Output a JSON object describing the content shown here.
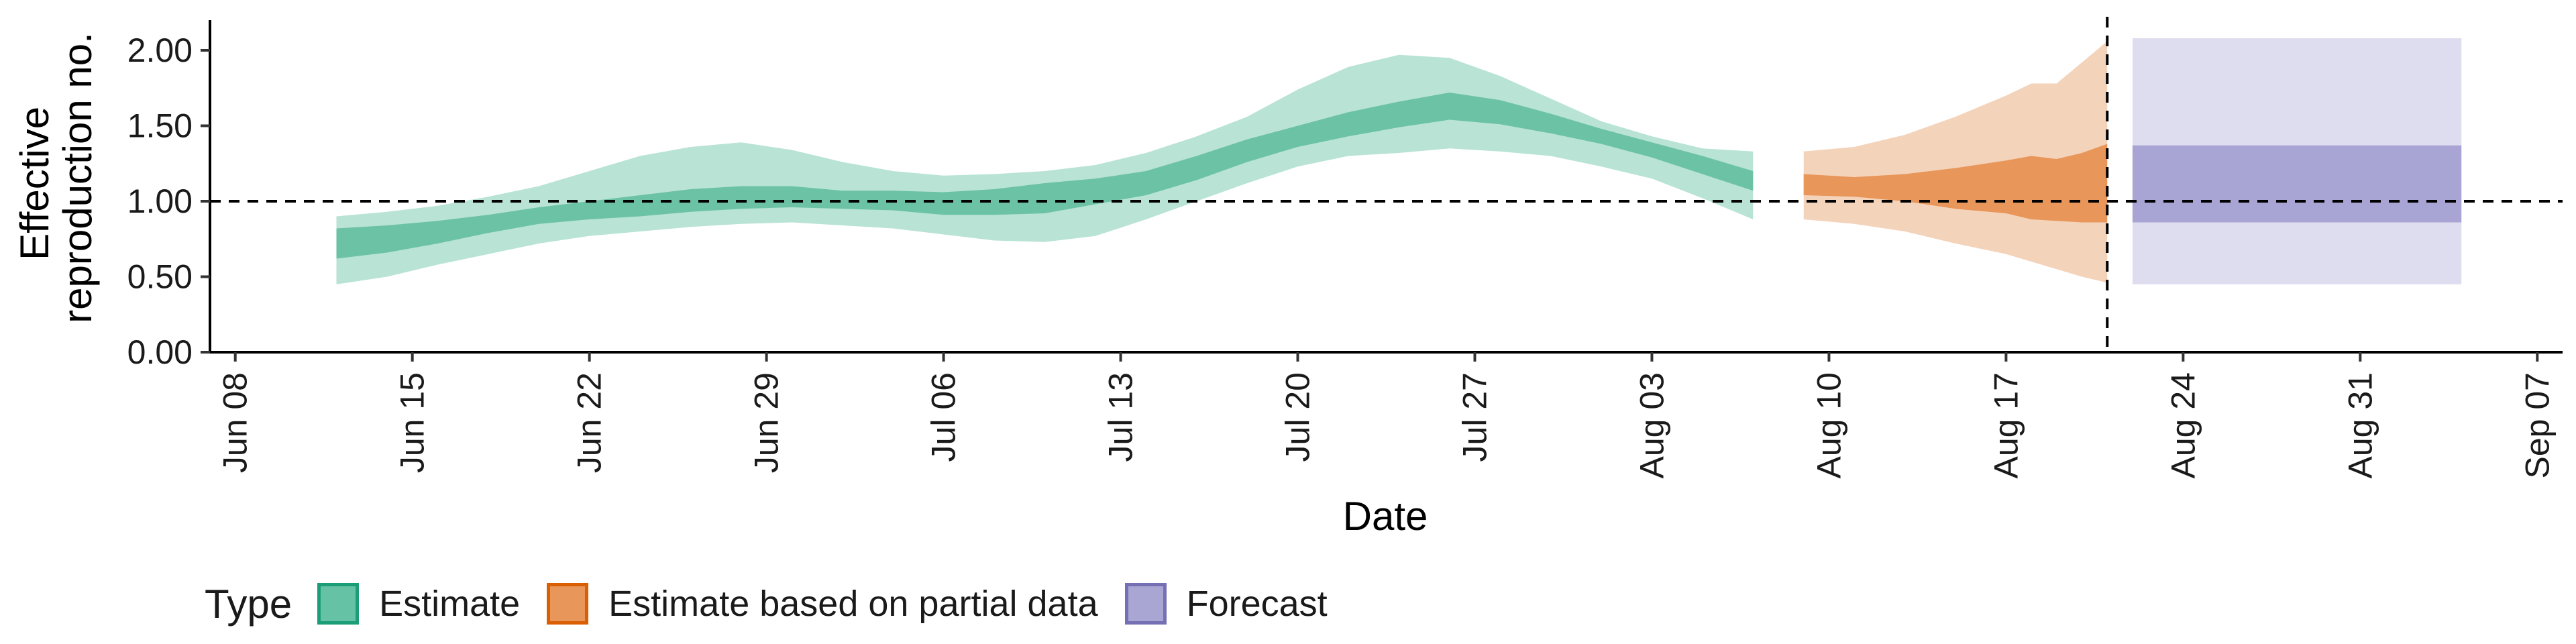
{
  "chart_data": {
    "type": "area",
    "xlabel": "Date",
    "ylabel_lines": [
      "Effective",
      "reproduction no."
    ],
    "ylim": [
      0,
      2.2
    ],
    "xlim": [
      "2020-06-07",
      "2020-09-08"
    ],
    "x_ticks": [
      "2020-06-08",
      "2020-06-15",
      "2020-06-22",
      "2020-06-29",
      "2020-07-06",
      "2020-07-13",
      "2020-07-20",
      "2020-07-27",
      "2020-08-03",
      "2020-08-10",
      "2020-08-17",
      "2020-08-24",
      "2020-08-31",
      "2020-09-07"
    ],
    "x_tick_labels": [
      "Jun 08",
      "Jun 15",
      "Jun 22",
      "Jun 29",
      "Jul 06",
      "Jul 13",
      "Jul 20",
      "Jul 27",
      "Aug 03",
      "Aug 10",
      "Aug 17",
      "Aug 24",
      "Aug 31",
      "Sep 07"
    ],
    "y_ticks": [
      0,
      0.5,
      1.0,
      1.5,
      2.0
    ],
    "y_tick_labels": [
      "0.00",
      "0.50",
      "1.00",
      "1.50",
      "2.00"
    ],
    "hline": 1.0,
    "vline": "2020-08-21",
    "legend": {
      "title": "Type",
      "position": "bottom",
      "items": [
        {
          "label": "Estimate",
          "fill": "#66c2a5",
          "border": "#1b9e77"
        },
        {
          "label": "Estimate based on partial data",
          "fill": "#e8965a",
          "border": "#d95f02"
        },
        {
          "label": "Forecast",
          "fill": "#a9a6d3",
          "border": "#7570b3"
        }
      ]
    },
    "series": [
      {
        "name": "Estimate",
        "color_outer": "#b8e3d5",
        "color_inner": "#6cc2a5",
        "x": [
          "2020-06-12",
          "2020-06-14",
          "2020-06-16",
          "2020-06-18",
          "2020-06-20",
          "2020-06-22",
          "2020-06-24",
          "2020-06-26",
          "2020-06-28",
          "2020-06-30",
          "2020-07-02",
          "2020-07-04",
          "2020-07-06",
          "2020-07-08",
          "2020-07-10",
          "2020-07-12",
          "2020-07-14",
          "2020-07-16",
          "2020-07-18",
          "2020-07-20",
          "2020-07-22",
          "2020-07-24",
          "2020-07-26",
          "2020-07-28",
          "2020-07-30",
          "2020-08-01",
          "2020-08-03",
          "2020-08-05",
          "2020-08-07"
        ],
        "lo90": [
          0.45,
          0.5,
          0.58,
          0.65,
          0.72,
          0.77,
          0.8,
          0.83,
          0.85,
          0.86,
          0.84,
          0.82,
          0.78,
          0.74,
          0.73,
          0.77,
          0.88,
          1.0,
          1.12,
          1.23,
          1.3,
          1.32,
          1.35,
          1.33,
          1.3,
          1.23,
          1.15,
          1.02,
          0.88
        ],
        "lo50": [
          0.62,
          0.66,
          0.72,
          0.79,
          0.85,
          0.88,
          0.9,
          0.93,
          0.95,
          0.96,
          0.95,
          0.94,
          0.91,
          0.91,
          0.92,
          0.98,
          1.04,
          1.14,
          1.26,
          1.36,
          1.43,
          1.49,
          1.54,
          1.51,
          1.45,
          1.38,
          1.29,
          1.18,
          1.07
        ],
        "hi50": [
          0.82,
          0.84,
          0.87,
          0.91,
          0.96,
          1.0,
          1.04,
          1.08,
          1.1,
          1.1,
          1.07,
          1.07,
          1.06,
          1.08,
          1.12,
          1.15,
          1.2,
          1.3,
          1.41,
          1.5,
          1.59,
          1.66,
          1.72,
          1.67,
          1.58,
          1.48,
          1.39,
          1.3,
          1.2
        ],
        "hi90": [
          0.9,
          0.93,
          0.97,
          1.03,
          1.1,
          1.2,
          1.3,
          1.36,
          1.39,
          1.34,
          1.26,
          1.2,
          1.17,
          1.18,
          1.2,
          1.24,
          1.32,
          1.43,
          1.56,
          1.74,
          1.89,
          1.97,
          1.95,
          1.83,
          1.68,
          1.53,
          1.43,
          1.35,
          1.33
        ]
      },
      {
        "name": "Estimate based on partial data",
        "color_outer": "#f4d3bb",
        "color_inner": "#e8965a",
        "x": [
          "2020-08-09",
          "2020-08-11",
          "2020-08-13",
          "2020-08-15",
          "2020-08-17",
          "2020-08-18",
          "2020-08-19",
          "2020-08-20",
          "2020-08-21"
        ],
        "lo90": [
          0.88,
          0.85,
          0.8,
          0.72,
          0.65,
          0.6,
          0.55,
          0.5,
          0.46
        ],
        "lo50": [
          1.04,
          1.03,
          1.0,
          0.95,
          0.92,
          0.88,
          0.87,
          0.86,
          0.86
        ],
        "hi50": [
          1.18,
          1.16,
          1.18,
          1.22,
          1.27,
          1.3,
          1.28,
          1.32,
          1.38
        ],
        "hi90": [
          1.33,
          1.36,
          1.44,
          1.56,
          1.7,
          1.78,
          1.78,
          1.92,
          2.06
        ]
      },
      {
        "name": "Forecast",
        "color_outer": "#dedcef",
        "color_inner": "#a8a4d3",
        "x": [
          "2020-08-22",
          "2020-09-04"
        ],
        "lo90": [
          0.45,
          0.45
        ],
        "lo50": [
          0.86,
          0.86
        ],
        "hi50": [
          1.37,
          1.37
        ],
        "hi90": [
          2.08,
          2.08
        ]
      }
    ]
  }
}
